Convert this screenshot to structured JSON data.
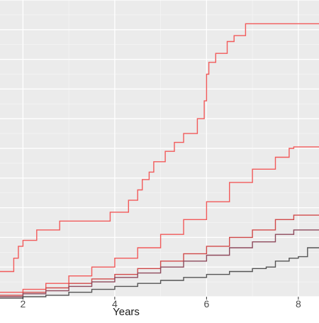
{
  "chart_data": {
    "type": "line",
    "step": true,
    "title": "",
    "xlabel": "Years",
    "ylabel": "",
    "xlim": [
      1.5,
      8.45
    ],
    "ylim": [
      0,
      1
    ],
    "xticks": [
      2,
      4,
      6,
      8
    ],
    "x_tick_labels": [
      "2",
      "4",
      "6",
      "8"
    ],
    "grid": true,
    "legend": "none",
    "colors": {
      "panel_background": "#ebebeb",
      "grid_major": "#ffffff",
      "grid_minor": "#f5f5f5"
    },
    "series": [
      {
        "color": "#f25a5a",
        "x": [
          1.5,
          1.8,
          1.9,
          2.0,
          2.3,
          2.8,
          3.9,
          4.3,
          4.5,
          4.6,
          4.75,
          4.85,
          5.1,
          5.3,
          5.5,
          5.8,
          5.95,
          6.0,
          6.05,
          6.2,
          6.45,
          6.6,
          6.85,
          8.45
        ],
        "y": [
          0.085,
          0.13,
          0.17,
          0.19,
          0.225,
          0.255,
          0.285,
          0.325,
          0.36,
          0.395,
          0.42,
          0.455,
          0.49,
          0.52,
          0.55,
          0.6,
          0.66,
          0.75,
          0.79,
          0.82,
          0.86,
          0.88,
          0.92,
          0.92
        ]
      },
      {
        "color": "#f25a5a",
        "x": [
          1.5,
          2.0,
          2.5,
          3.0,
          3.5,
          4.0,
          4.5,
          5.0,
          5.5,
          6.0,
          6.5,
          7.0,
          7.5,
          7.8,
          7.9,
          8.45
        ],
        "y": [
          0.015,
          0.025,
          0.045,
          0.07,
          0.1,
          0.13,
          0.165,
          0.21,
          0.26,
          0.32,
          0.385,
          0.43,
          0.47,
          0.5,
          0.505,
          0.505
        ]
      },
      {
        "color": "#d14a4a",
        "x": [
          1.5,
          2.0,
          2.5,
          3.0,
          3.5,
          4.0,
          4.5,
          5.0,
          5.5,
          6.0,
          6.5,
          7.0,
          7.5,
          7.9,
          8.45
        ],
        "y": [
          0.005,
          0.015,
          0.03,
          0.045,
          0.06,
          0.075,
          0.095,
          0.12,
          0.145,
          0.17,
          0.2,
          0.225,
          0.26,
          0.275,
          0.275
        ]
      },
      {
        "color": "#8e4a5c",
        "x": [
          1.5,
          2.0,
          2.5,
          3.0,
          3.5,
          4.0,
          4.5,
          5.0,
          5.5,
          6.0,
          6.5,
          7.0,
          7.5,
          7.9,
          8.45
        ],
        "y": [
          0.0,
          0.01,
          0.02,
          0.035,
          0.05,
          0.065,
          0.08,
          0.1,
          0.12,
          0.14,
          0.165,
          0.185,
          0.21,
          0.225,
          0.225
        ]
      },
      {
        "color": "#555555",
        "x": [
          1.5,
          2.0,
          2.5,
          3.0,
          3.5,
          4.0,
          4.5,
          5.0,
          5.5,
          6.0,
          6.5,
          7.0,
          7.3,
          7.5,
          7.8,
          8.0,
          8.2,
          8.45
        ],
        "y": [
          -0.005,
          0.0,
          0.005,
          0.015,
          0.025,
          0.035,
          0.045,
          0.055,
          0.065,
          0.075,
          0.085,
          0.095,
          0.1,
          0.12,
          0.13,
          0.135,
          0.165,
          0.165
        ]
      }
    ]
  }
}
